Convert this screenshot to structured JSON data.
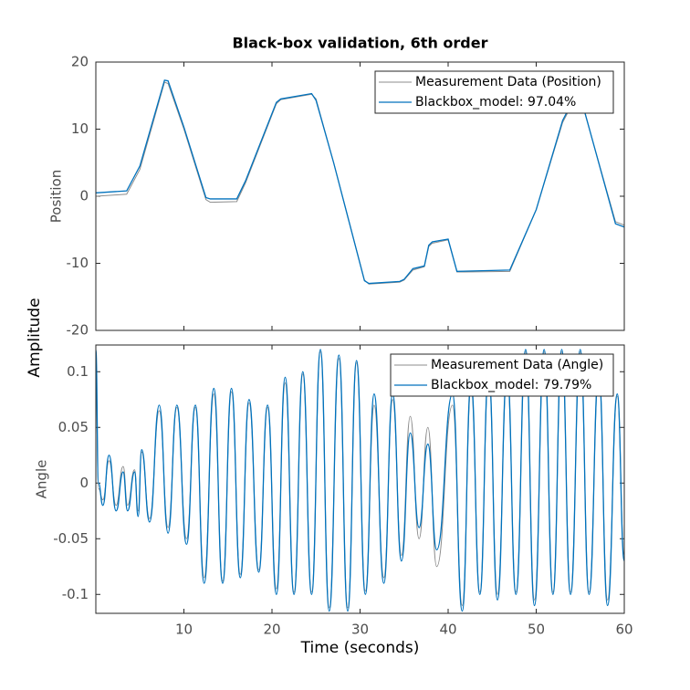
{
  "figure": {
    "ylabel": "Amplitude"
  },
  "chart_data": [
    {
      "type": "line",
      "title": "Black-box validation, 6th order",
      "ylabel": "Position",
      "xlim": [
        0,
        60
      ],
      "xticks": [
        10,
        20,
        30,
        40,
        50,
        60
      ],
      "ylim": [
        -20,
        20
      ],
      "yticks": [
        -20,
        -10,
        0,
        10,
        20
      ],
      "legend": "northeast",
      "smooth": false,
      "x": [
        0,
        3.5,
        5,
        7.8,
        8.2,
        10,
        12.5,
        13,
        16,
        17,
        20.5,
        21,
        24.5,
        25,
        27,
        30.5,
        31,
        34.5,
        35,
        36,
        37.3,
        37.8,
        38.2,
        40,
        41,
        47,
        50,
        53,
        54,
        55.5,
        59,
        60
      ],
      "series": [
        {
          "name": "Measurement Data (Position)",
          "color": "#8c8c8c",
          "values": [
            0,
            0.3,
            4,
            17,
            16.8,
            10,
            -0.5,
            -0.9,
            -0.8,
            2,
            13.8,
            14.4,
            15.2,
            14.5,
            5,
            -12.5,
            -13.1,
            -12.8,
            -12.5,
            -11,
            -10.5,
            -7.5,
            -7,
            -6.5,
            -11.3,
            -11.2,
            -2,
            11,
            13.5,
            12.5,
            -3.8,
            -4.3
          ]
        },
        {
          "name": "Blackbox_model: 97.04%",
          "color": "#0072bd",
          "values": [
            0.5,
            0.8,
            4.5,
            17.3,
            17.2,
            10.3,
            -0.2,
            -0.4,
            -0.4,
            2.3,
            14,
            14.5,
            15.3,
            14.3,
            5,
            -12.6,
            -13,
            -12.7,
            -12.4,
            -10.8,
            -10.4,
            -7.3,
            -6.8,
            -6.4,
            -11.2,
            -11,
            -2,
            11.3,
            13.8,
            12.6,
            -4.1,
            -4.6
          ]
        }
      ]
    },
    {
      "type": "line",
      "ylabel": "Angle",
      "xlabel": "Time (seconds)",
      "xlim": [
        0,
        60
      ],
      "xticks": [
        10,
        20,
        30,
        40,
        50,
        60
      ],
      "ylim": [
        -0.117,
        0.124
      ],
      "yticks": [
        -0.1,
        -0.05,
        0,
        0.05,
        0.1
      ],
      "legend": "northeast",
      "smooth": true,
      "x": [
        0,
        0.3,
        0.8,
        1.5,
        2.3,
        3.1,
        3.6,
        4.4,
        4.8,
        5.2,
        6.1,
        7.2,
        8.2,
        9.2,
        10.3,
        11.3,
        12.3,
        13.4,
        14.4,
        15.4,
        16.4,
        17.4,
        18.5,
        19.5,
        20.5,
        21.5,
        22.5,
        23.5,
        24.5,
        25.5,
        26.5,
        27.6,
        28.6,
        29.6,
        30.6,
        31.6,
        32.7,
        33.7,
        34.7,
        35.7,
        36.7,
        37.7,
        38.7,
        40.5,
        41.6,
        42.6,
        43.6,
        44.6,
        45.6,
        46.7,
        47.7,
        48.8,
        49.8,
        50.9,
        51.9,
        52.9,
        53.9,
        55,
        56,
        57.1,
        58.1,
        59.2,
        60
      ],
      "series": [
        {
          "name": "Measurement Data (Angle)",
          "color": "#8c8c8c",
          "values": [
            0.1,
            -0.005,
            -0.015,
            0.02,
            -0.02,
            0.015,
            -0.02,
            0.012,
            -0.025,
            0.028,
            -0.032,
            0.065,
            -0.04,
            0.068,
            -0.05,
            0.068,
            -0.085,
            0.08,
            -0.088,
            0.082,
            -0.082,
            0.072,
            -0.078,
            0.068,
            -0.095,
            0.09,
            -0.098,
            0.098,
            -0.098,
            0.118,
            -0.112,
            0.112,
            -0.112,
            0.108,
            -0.097,
            0.07,
            -0.085,
            0.075,
            -0.065,
            0.06,
            -0.05,
            0.05,
            -0.075,
            0.07,
            -0.11,
            0.085,
            -0.098,
            0.098,
            -0.1,
            0.098,
            -0.098,
            0.118,
            -0.105,
            0.118,
            -0.098,
            0.118,
            -0.098,
            0.118,
            -0.098,
            0.098,
            -0.105,
            0.078,
            -0.065
          ]
        },
        {
          "name": "Blackbox_model: 79.79%",
          "color": "#0072bd",
          "values": [
            0.12,
            0,
            -0.02,
            0.025,
            -0.025,
            0.01,
            -0.025,
            0.01,
            -0.03,
            0.03,
            -0.035,
            0.07,
            -0.045,
            0.07,
            -0.055,
            0.07,
            -0.09,
            0.085,
            -0.09,
            0.085,
            -0.085,
            0.075,
            -0.08,
            0.07,
            -0.1,
            0.095,
            -0.1,
            0.1,
            -0.1,
            0.12,
            -0.115,
            0.115,
            -0.115,
            0.11,
            -0.1,
            0.08,
            -0.09,
            0.08,
            -0.07,
            0.045,
            -0.04,
            0.035,
            -0.06,
            0.08,
            -0.115,
            0.09,
            -0.1,
            0.1,
            -0.105,
            0.1,
            -0.1,
            0.12,
            -0.11,
            0.12,
            -0.1,
            0.12,
            -0.1,
            0.12,
            -0.1,
            0.1,
            -0.11,
            0.08,
            -0.07
          ]
        }
      ]
    }
  ]
}
